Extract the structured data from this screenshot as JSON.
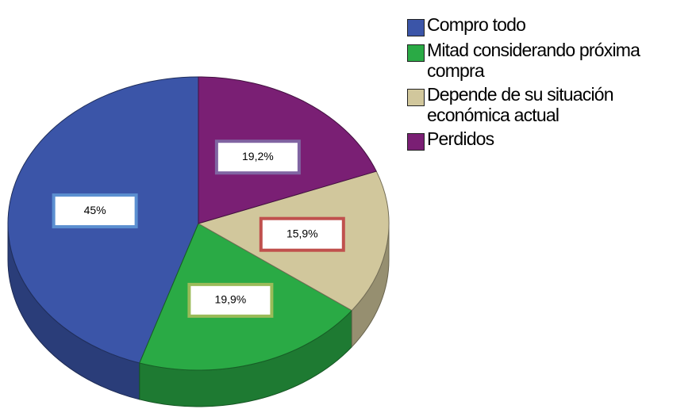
{
  "chart_data": {
    "type": "pie",
    "categories": [
      "Compro todo",
      "Mitad considerando próxima compra",
      "Depende de su situación económica actual",
      "Perdidos"
    ],
    "values": [
      45,
      19.9,
      15.9,
      19.2
    ],
    "value_labels": [
      "45%",
      "19,9%",
      "15,9%",
      "19,2%"
    ],
    "colors": [
      "#3b55a8",
      "#2aaa45",
      "#d1c79c",
      "#7a1f74"
    ],
    "label_colors": [
      "#5b8fd0",
      "#9bbb59",
      "#c0504d",
      "#8064a2"
    ],
    "legend": "right"
  }
}
